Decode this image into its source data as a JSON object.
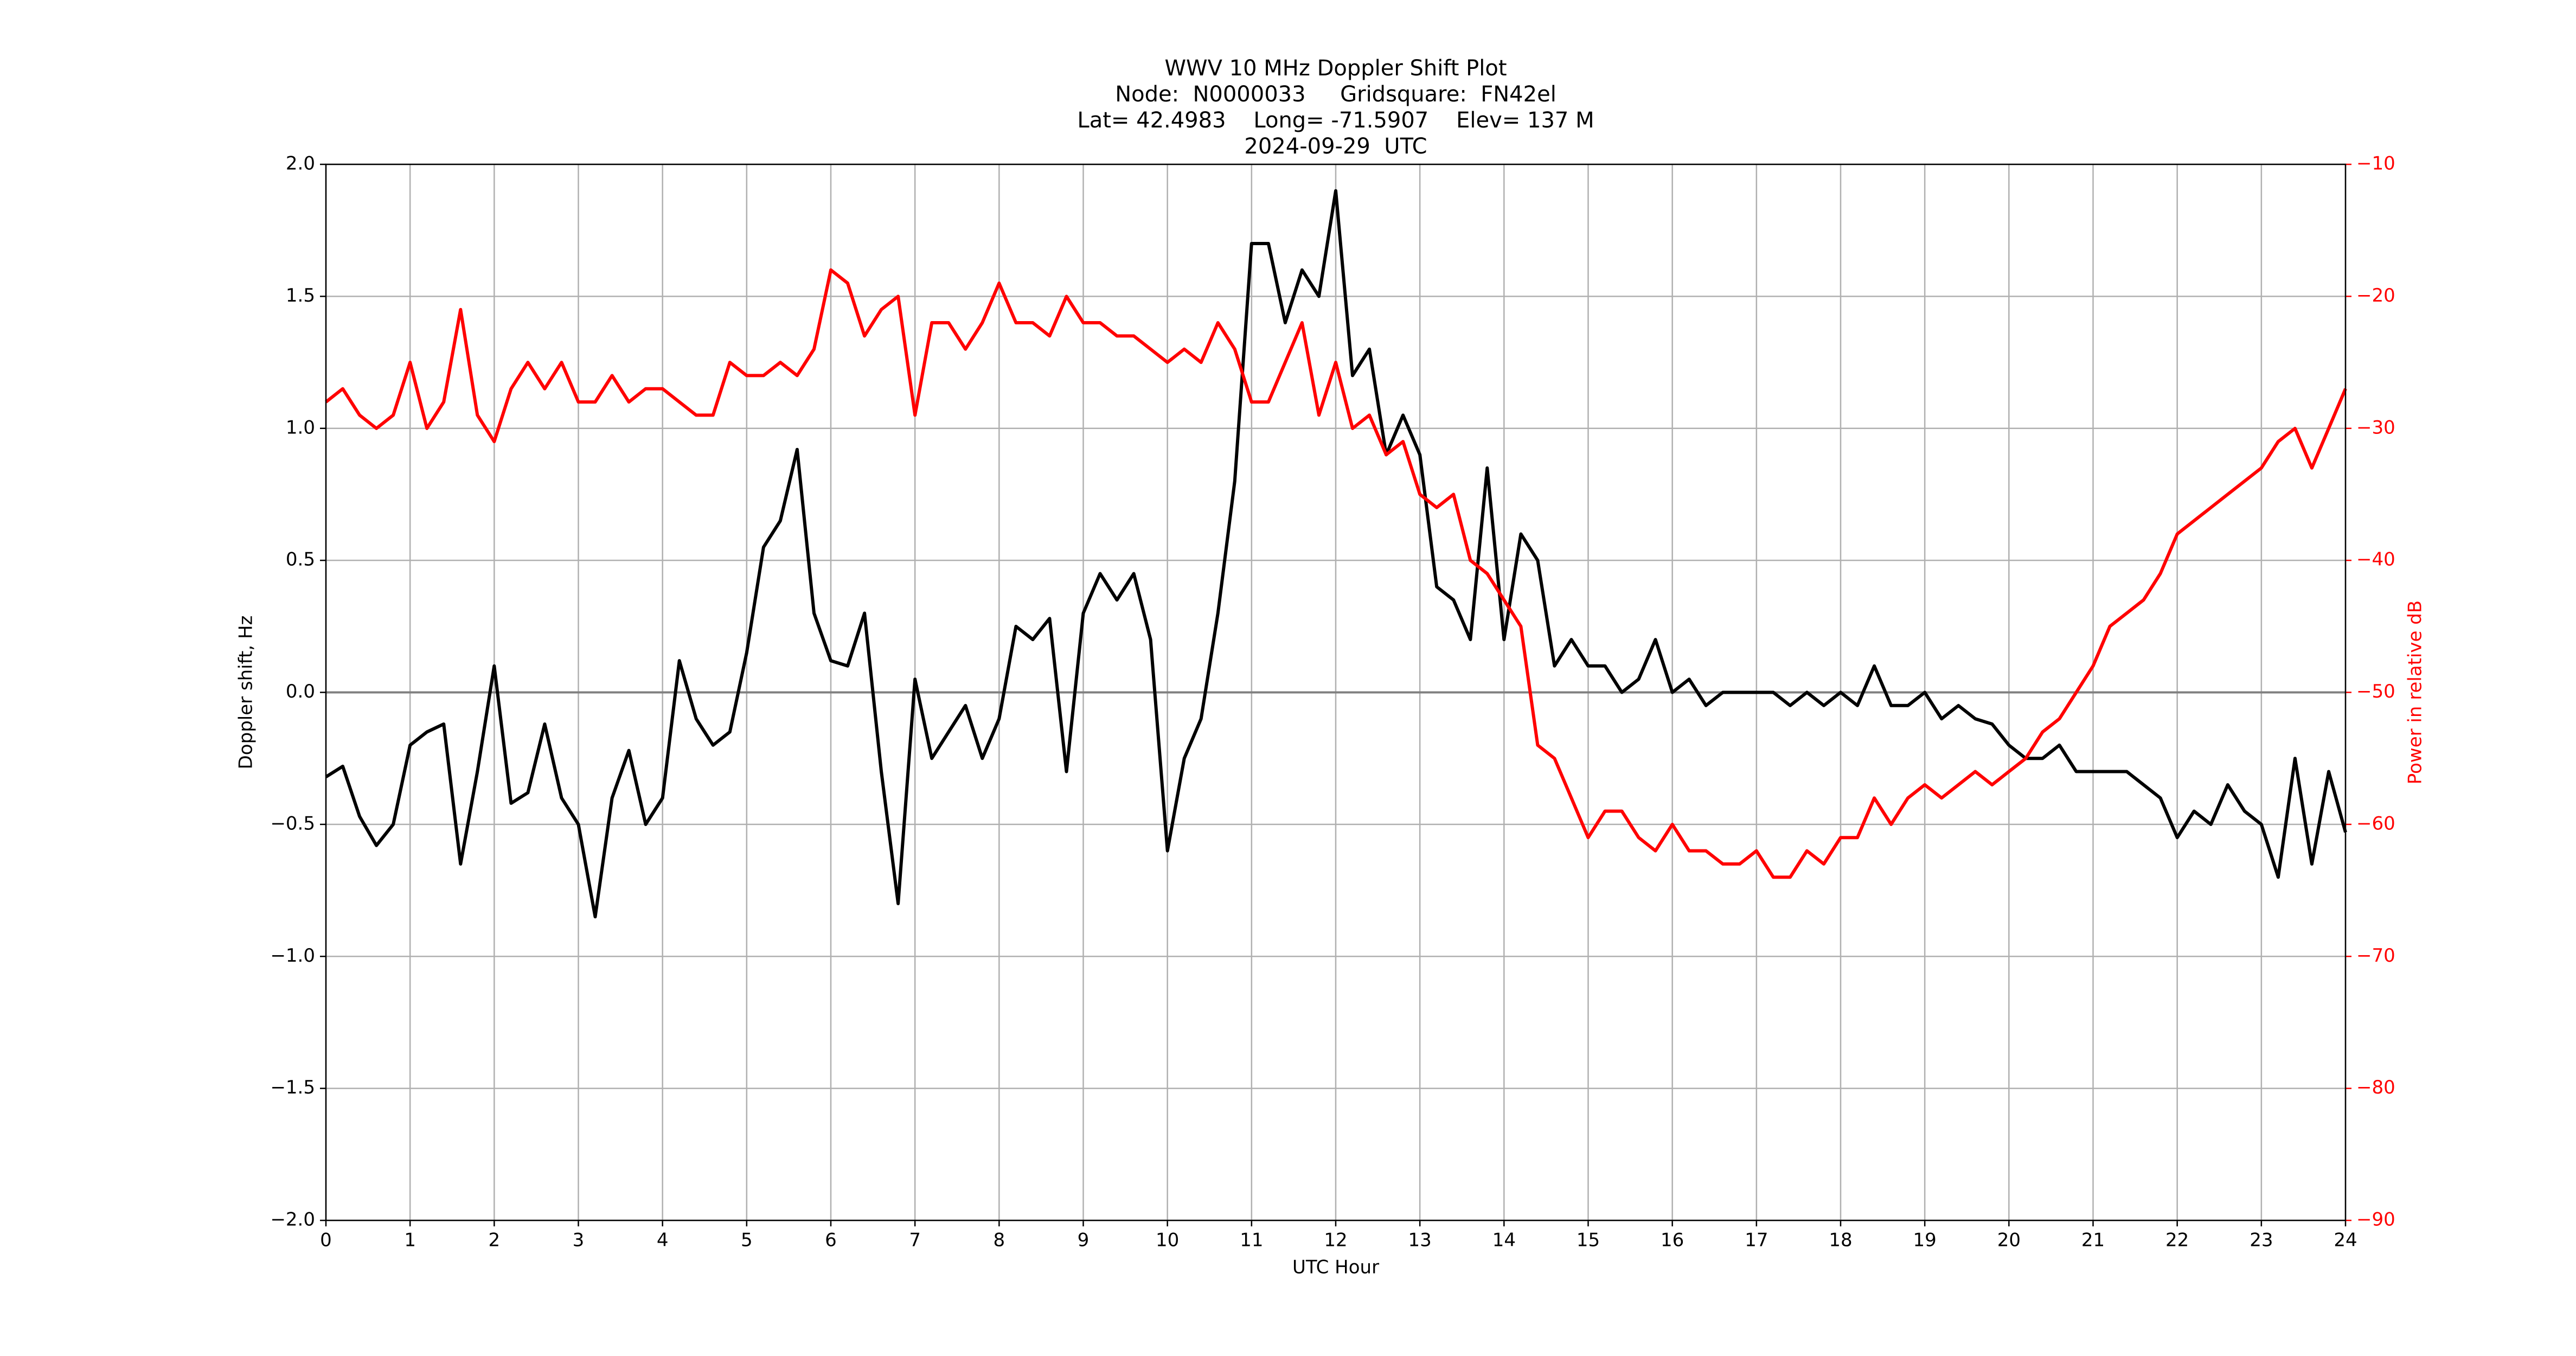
{
  "chart_data": {
    "type": "line",
    "title": [
      "WWV 10 MHz Doppler Shift Plot",
      "Node:  N0000033     Gridsquare:  FN42el",
      "Lat= 42.4983    Long= -71.5907    Elev= 137 M",
      "2024-09-29  UTC"
    ],
    "xlabel": "UTC Hour",
    "ylabel": "Doppler shift, Hz",
    "y2label": "Power in relative dB",
    "grid": true,
    "x": [
      0,
      0.2,
      0.4,
      0.6,
      0.8,
      1,
      1.2,
      1.4,
      1.6,
      1.8,
      2,
      2.2,
      2.4,
      2.6,
      2.8,
      3,
      3.2,
      3.4,
      3.6,
      3.8,
      4,
      4.2,
      4.4,
      4.6,
      4.8,
      5,
      5.2,
      5.4,
      5.6,
      5.8,
      6,
      6.2,
      6.4,
      6.6,
      6.8,
      7,
      7.2,
      7.4,
      7.6,
      7.8,
      8,
      8.2,
      8.4,
      8.6,
      8.8,
      9,
      9.2,
      9.4,
      9.6,
      9.8,
      10,
      10.2,
      10.4,
      10.6,
      10.8,
      11,
      11.2,
      11.4,
      11.6,
      11.8,
      12,
      12.2,
      12.4,
      12.6,
      12.8,
      13,
      13.2,
      13.4,
      13.6,
      13.8,
      14,
      14.2,
      14.4,
      14.6,
      14.8,
      15,
      15.2,
      15.4,
      15.6,
      15.8,
      16,
      16.2,
      16.4,
      16.6,
      16.8,
      17,
      17.2,
      17.4,
      17.6,
      17.8,
      18,
      18.2,
      18.4,
      18.6,
      18.8,
      19,
      19.2,
      19.4,
      19.6,
      19.8,
      20,
      20.2,
      20.4,
      20.6,
      20.8,
      21,
      21.2,
      21.4,
      21.6,
      21.8,
      22,
      22.2,
      22.4,
      22.6,
      22.8,
      23,
      23.2,
      23.4,
      23.6,
      23.8,
      24
    ],
    "series": [
      {
        "color": "#000000",
        "values": [
          -0.32,
          -0.28,
          -0.47,
          -0.58,
          -0.5,
          -0.2,
          -0.15,
          -0.12,
          -0.65,
          -0.3,
          0.1,
          -0.42,
          -0.38,
          -0.12,
          -0.4,
          -0.5,
          -0.85,
          -0.4,
          -0.22,
          -0.5,
          -0.4,
          0.12,
          -0.1,
          -0.2,
          -0.15,
          0.15,
          0.55,
          0.65,
          0.92,
          0.3,
          0.12,
          0.1,
          0.3,
          -0.3,
          -0.8,
          0.05,
          -0.25,
          -0.15,
          -0.05,
          -0.25,
          -0.1,
          0.25,
          0.2,
          0.28,
          -0.3,
          0.3,
          0.45,
          0.35,
          0.45,
          0.2,
          -0.6,
          -0.25,
          -0.1,
          0.3,
          0.8,
          1.7,
          1.7,
          1.4,
          1.6,
          1.5,
          1.9,
          1.2,
          1.3,
          0.9,
          1.05,
          0.9,
          0.4,
          0.35,
          0.2,
          0.85,
          0.2,
          0.6,
          0.5,
          0.1,
          0.2,
          0.1,
          0.1,
          0,
          0.05,
          0.2,
          0,
          0.05,
          -0.05,
          0,
          0,
          0,
          0,
          -0.05,
          0,
          -0.05,
          0,
          -0.05,
          0.1,
          -0.05,
          -0.05,
          0,
          -0.1,
          -0.05,
          -0.1,
          -0.12,
          -0.2,
          -0.25,
          -0.25,
          -0.2,
          -0.3,
          -0.3,
          -0.3,
          -0.3,
          -0.35,
          -0.4,
          -0.55,
          -0.45,
          -0.5,
          -0.35,
          -0.45,
          -0.5,
          -0.7,
          -0.25,
          -0.65,
          -0.3,
          -0.53
        ]
      },
      {
        "color": "#ff0000",
        "axis": "y2",
        "values": [
          -28,
          -27,
          -29,
          -30,
          -29,
          -25,
          -30,
          -28,
          -21,
          -29,
          -31,
          -27,
          -25,
          -27,
          -25,
          -28,
          -28,
          -26,
          -28,
          -27,
          -27,
          -28,
          -29,
          -29,
          -25,
          -26,
          -26,
          -25,
          -26,
          -24,
          -18,
          -19,
          -23,
          -21,
          -20,
          -29,
          -22,
          -22,
          -24,
          -22,
          -19,
          -22,
          -22,
          -23,
          -20,
          -22,
          -22,
          -23,
          -23,
          -24,
          -25,
          -24,
          -25,
          -22,
          -24,
          -28,
          -28,
          -25,
          -22,
          -29,
          -25,
          -30,
          -29,
          -32,
          -31,
          -35,
          -36,
          -35,
          -40,
          -41,
          -43,
          -45,
          -54,
          -55,
          -58,
          -61,
          -59,
          -59,
          -61,
          -62,
          -60,
          -62,
          -62,
          -63,
          -63,
          -62,
          -64,
          -64,
          -62,
          -63,
          -61,
          -61,
          -58,
          -60,
          -58,
          -57,
          -58,
          -57,
          -56,
          -57,
          -56,
          -55,
          -53,
          -52,
          -50,
          -48,
          -45,
          -44,
          -43,
          -41,
          -38,
          -37,
          -36,
          -35,
          -34,
          -33,
          -31,
          -30,
          -33,
          -30,
          -27
        ]
      }
    ],
    "xlim": [
      0,
      24
    ],
    "xticks": [
      0,
      1,
      2,
      3,
      4,
      5,
      6,
      7,
      8,
      9,
      10,
      11,
      12,
      13,
      14,
      15,
      16,
      17,
      18,
      19,
      20,
      21,
      22,
      23,
      24
    ],
    "ylim": [
      -2,
      2
    ],
    "yticks": [
      {
        "value": -2,
        "label": "−2.0"
      },
      {
        "value": -1.5,
        "label": "−1.5"
      },
      {
        "value": -1,
        "label": "−1.0"
      },
      {
        "value": -0.5,
        "label": "−0.5"
      },
      {
        "value": 0,
        "label": "0.0"
      },
      {
        "value": 0.5,
        "label": "0.5"
      },
      {
        "value": 1,
        "label": "1.0"
      },
      {
        "value": 1.5,
        "label": "1.5"
      },
      {
        "value": 2,
        "label": "2.0"
      }
    ],
    "y2lim": [
      -90,
      -10
    ],
    "y2ticks": [
      {
        "value": -90,
        "label": "−90"
      },
      {
        "value": -80,
        "label": "−80"
      },
      {
        "value": -70,
        "label": "−70"
      },
      {
        "value": -60,
        "label": "−60"
      },
      {
        "value": -50,
        "label": "−50"
      },
      {
        "value": -40,
        "label": "−40"
      },
      {
        "value": -30,
        "label": "−30"
      },
      {
        "value": -20,
        "label": "−20"
      },
      {
        "value": -10,
        "label": "−10"
      }
    ],
    "y2color": "#ff0000"
  }
}
